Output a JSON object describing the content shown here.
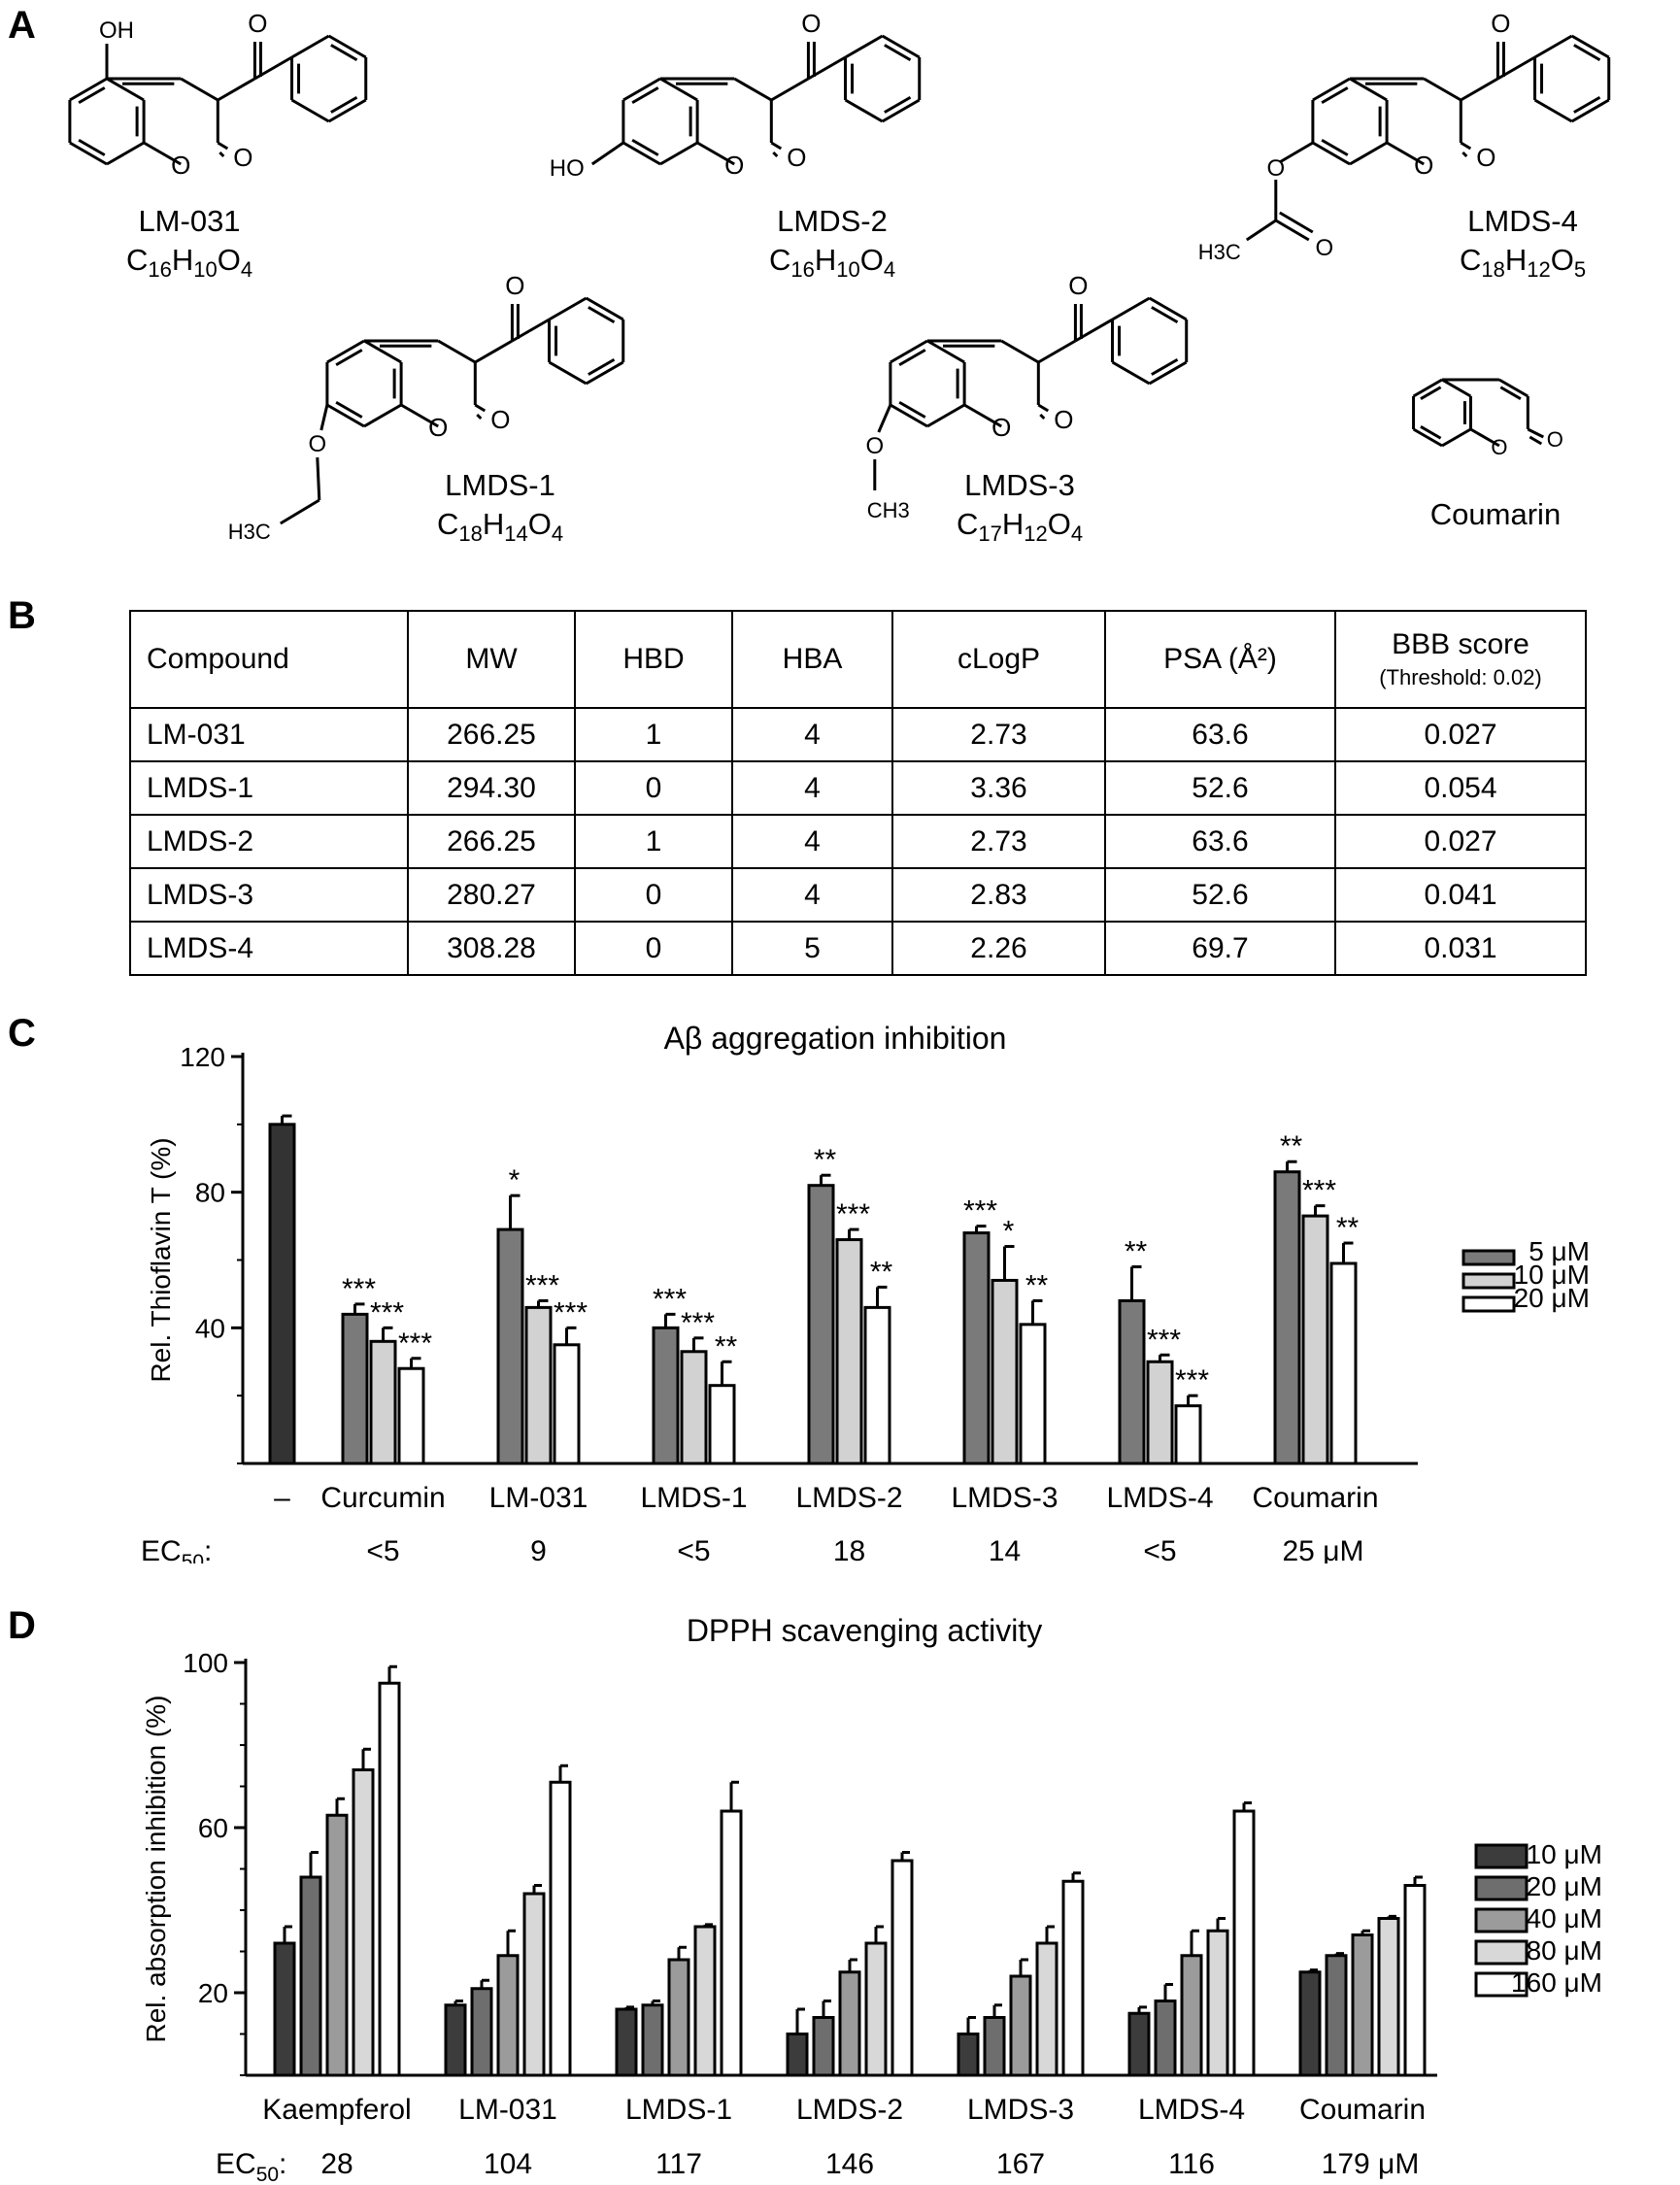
{
  "panels": {
    "a": "A",
    "b": "B",
    "c": "C",
    "d": "D"
  },
  "structures": {
    "LM-031": {
      "name": "LM-031",
      "formula": [
        [
          "C",
          ""
        ],
        [
          "16",
          "sub"
        ],
        [
          "H",
          ""
        ],
        [
          "10",
          "sub"
        ],
        [
          "O",
          ""
        ],
        [
          "4",
          "sub"
        ]
      ],
      "substituent": "OH"
    },
    "LMDS-2": {
      "name": "LMDS-2",
      "formula": [
        [
          "C",
          ""
        ],
        [
          "16",
          "sub"
        ],
        [
          "H",
          ""
        ],
        [
          "10",
          "sub"
        ],
        [
          "O",
          ""
        ],
        [
          "4",
          "sub"
        ]
      ],
      "substituent": "HO"
    },
    "LMDS-4": {
      "name": "LMDS-4",
      "formula": [
        [
          "C",
          ""
        ],
        [
          "18",
          "sub"
        ],
        [
          "H",
          ""
        ],
        [
          "12",
          "sub"
        ],
        [
          "O",
          ""
        ],
        [
          "5",
          "sub"
        ]
      ],
      "substituent": "H3C"
    },
    "LMDS-1": {
      "name": "LMDS-1",
      "formula": [
        [
          "C",
          ""
        ],
        [
          "18",
          "sub"
        ],
        [
          "H",
          ""
        ],
        [
          "14",
          "sub"
        ],
        [
          "O",
          ""
        ],
        [
          "4",
          "sub"
        ]
      ],
      "substituent": "H3C"
    },
    "LMDS-3": {
      "name": "LMDS-3",
      "formula": [
        [
          "C",
          ""
        ],
        [
          "17",
          "sub"
        ],
        [
          "H",
          ""
        ],
        [
          "12",
          "sub"
        ],
        [
          "O",
          ""
        ],
        [
          "4",
          "sub"
        ]
      ],
      "substituent": "CH3"
    },
    "Coumarin": {
      "name": "Coumarin"
    },
    "atom_O": "O"
  },
  "table": {
    "headers": [
      "Compound",
      "MW",
      "HBD",
      "HBA",
      "cLogP",
      "PSA (Å²)",
      "BBB score"
    ],
    "bbb_threshold": "(Threshold: 0.02)",
    "rows": [
      [
        "LM-031",
        "266.25",
        "1",
        "4",
        "2.73",
        "63.6",
        "0.027"
      ],
      [
        "LMDS-1",
        "294.30",
        "0",
        "4",
        "3.36",
        "52.6",
        "0.054"
      ],
      [
        "LMDS-2",
        "266.25",
        "1",
        "4",
        "2.73",
        "63.6",
        "0.027"
      ],
      [
        "LMDS-3",
        "280.27",
        "0",
        "4",
        "2.83",
        "52.6",
        "0.041"
      ],
      [
        "LMDS-4",
        "308.28",
        "0",
        "5",
        "2.26",
        "69.7",
        "0.031"
      ]
    ]
  },
  "chart_data": [
    {
      "type": "bar",
      "title": "Aβ aggregation inhibition",
      "ylabel": "Rel. Thioflavin T (%)",
      "ylim": [
        0,
        120
      ],
      "yticks": [
        40,
        80,
        120
      ],
      "control": {
        "label": "–",
        "value": 100,
        "error": 2.5,
        "color": "#333333"
      },
      "categories": [
        "Curcumin",
        "LM-031",
        "LMDS-1",
        "LMDS-2",
        "LMDS-3",
        "LMDS-4",
        "Coumarin"
      ],
      "series": [
        {
          "name": "5 μM",
          "color": "#7a7a7a",
          "values": [
            44,
            69,
            40,
            82,
            68,
            48,
            86
          ],
          "errors": [
            3,
            10,
            4,
            3,
            2,
            10,
            3
          ],
          "stars": [
            "***",
            "*",
            "***",
            "**",
            "***",
            "**",
            "**"
          ]
        },
        {
          "name": "10 μM",
          "color": "#d2d2d2",
          "values": [
            36,
            46,
            33,
            66,
            54,
            30,
            73
          ],
          "errors": [
            4,
            2,
            4,
            3,
            10,
            2,
            3
          ],
          "stars": [
            "***",
            "***",
            "***",
            "***",
            "*",
            "***",
            "***"
          ]
        },
        {
          "name": "20 μM",
          "color": "#ffffff",
          "values": [
            28,
            35,
            23,
            46,
            41,
            17,
            59
          ],
          "errors": [
            3,
            5,
            7,
            6,
            7,
            3,
            6
          ],
          "stars": [
            "***",
            "***",
            "**",
            "**",
            "**",
            "***",
            "**"
          ]
        }
      ],
      "ec50_label": "EC50:",
      "ec50": [
        "<5",
        "9",
        "<5",
        "18",
        "14",
        "<5",
        "25 μM"
      ]
    },
    {
      "type": "bar",
      "title": "DPPH scavenging activity",
      "ylabel": "Rel. absorption inhibition (%)",
      "ylim": [
        0,
        100
      ],
      "yticks": [
        20,
        60,
        100
      ],
      "categories": [
        "Kaempferol",
        "LM-031",
        "LMDS-1",
        "LMDS-2",
        "LMDS-3",
        "LMDS-4",
        "Coumarin"
      ],
      "series": [
        {
          "name": "10 μM",
          "color": "#3c3c3c",
          "values": [
            32,
            17,
            16,
            10,
            10,
            15,
            25
          ],
          "errors": [
            4,
            1,
            0.5,
            6,
            4,
            1.5,
            0.5
          ]
        },
        {
          "name": "20 μM",
          "color": "#6e6e6e",
          "values": [
            48,
            21,
            17,
            14,
            14,
            18,
            29
          ],
          "errors": [
            6,
            2,
            1,
            4,
            3,
            4,
            0.5
          ]
        },
        {
          "name": "40 μM",
          "color": "#9b9b9b",
          "values": [
            63,
            29,
            28,
            25,
            24,
            29,
            34
          ],
          "errors": [
            4,
            6,
            3,
            3,
            4,
            6,
            1
          ]
        },
        {
          "name": "80 μM",
          "color": "#d8d8d8",
          "values": [
            74,
            44,
            36,
            32,
            32,
            35,
            38
          ],
          "errors": [
            5,
            2,
            0.5,
            4,
            4,
            3,
            0.5
          ]
        },
        {
          "name": "160 μM",
          "color": "#ffffff",
          "values": [
            95,
            71,
            64,
            52,
            47,
            64,
            46
          ],
          "errors": [
            4,
            4,
            7,
            2,
            2,
            2,
            2
          ]
        }
      ],
      "ec50_label": "EC50:",
      "ec50": [
        "28",
        "104",
        "117",
        "146",
        "167",
        "116",
        "179 μM"
      ]
    }
  ]
}
